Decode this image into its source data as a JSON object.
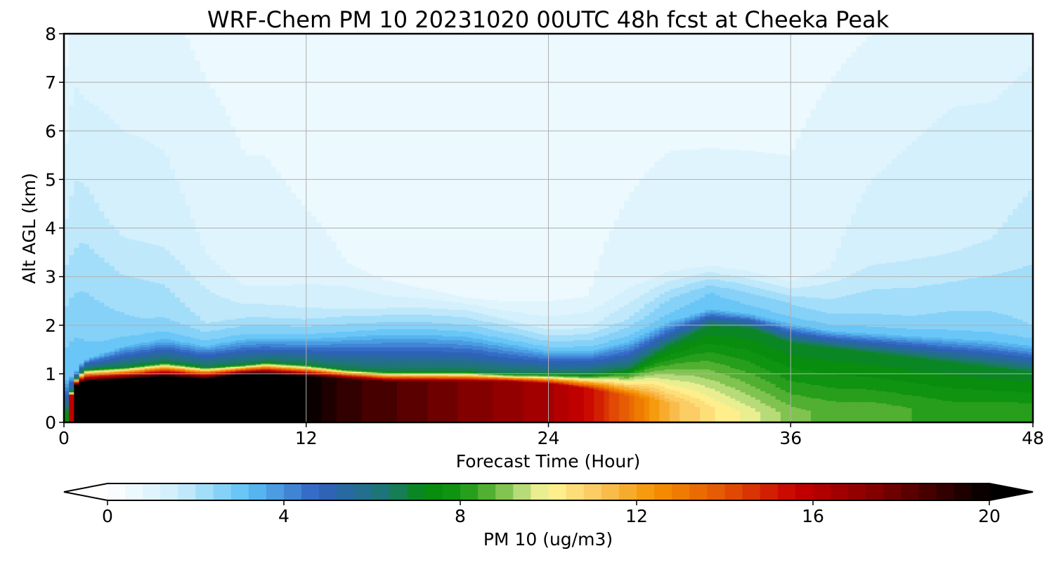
{
  "chart_data": {
    "type": "heatmap",
    "title": "WRF-Chem PM 10  20231020 00UTC 48h fcst at Cheeka Peak",
    "xlabel": "Forecast Time (Hour)",
    "ylabel": "Alt AGL (km)",
    "xlim": [
      0,
      48
    ],
    "ylim": [
      0,
      8
    ],
    "xticks": [
      0,
      12,
      24,
      36,
      48
    ],
    "yticks": [
      0,
      1,
      2,
      3,
      4,
      5,
      6,
      7,
      8
    ],
    "grid": true,
    "colorbar": {
      "label": "PM 10  (ug/m3)",
      "range": [
        0,
        20
      ],
      "step": 0.4,
      "ticks": [
        0,
        4,
        8,
        12,
        16,
        20
      ],
      "extend": "both",
      "orientation": "horizontal",
      "placement": "bottom"
    },
    "x": [
      0,
      0.5,
      1,
      3,
      5,
      7,
      9,
      10,
      12,
      14,
      16,
      18,
      20,
      22,
      24,
      26,
      28,
      30,
      32,
      34,
      36,
      38,
      40,
      42,
      44,
      46,
      48
    ],
    "y": [
      0,
      0.2,
      0.4,
      0.6,
      0.8,
      0.9,
      1.0,
      1.1,
      1.2,
      1.4,
      1.6,
      1.8,
      2.0,
      2.2,
      2.5,
      3.0,
      3.5,
      4.0,
      5.0,
      6.0,
      7.0,
      8.0
    ],
    "profiles": [
      {
        "hour": 0,
        "zb": 0.0,
        "vb": 3.0,
        "hb": 0.0,
        "ht": 0.9,
        "w": 0.15,
        "v1": 3.0,
        "z2": 4.0,
        "v2": 1.6,
        "v3": 0.5
      },
      {
        "hour": 0.5,
        "zb": 0.75,
        "vb": 20.0,
        "hb": 0.85,
        "ht": 1.0,
        "w": 0.3,
        "v1": 3.0,
        "z2": 4.0,
        "v2": 1.8,
        "v3": 1.0
      },
      {
        "hour": 1,
        "zb": 0.85,
        "vb": 20.0,
        "hb": 1.1,
        "ht": 1.3,
        "w": 0.4,
        "v1": 2.8,
        "z2": 4.5,
        "v2": 1.7,
        "v3": 0.9
      },
      {
        "hour": 3,
        "zb": 0.9,
        "vb": 20.0,
        "hb": 1.15,
        "ht": 1.6,
        "w": 0.45,
        "v1": 2.5,
        "z2": 4.0,
        "v2": 1.5,
        "v3": 0.9
      },
      {
        "hour": 5,
        "zb": 0.95,
        "vb": 20.0,
        "hb": 1.25,
        "ht": 1.75,
        "w": 0.5,
        "v1": 2.3,
        "z2": 4.0,
        "v2": 1.4,
        "v3": 0.9
      },
      {
        "hour": 7,
        "zb": 0.9,
        "vb": 20.0,
        "hb": 1.15,
        "ht": 1.6,
        "w": 0.45,
        "v1": 2.0,
        "z2": 3.5,
        "v2": 1.2,
        "v3": 0.7
      },
      {
        "hour": 9,
        "zb": 1.0,
        "vb": 20.0,
        "hb": 1.2,
        "ht": 1.75,
        "w": 0.5,
        "v1": 1.8,
        "z2": 3.0,
        "v2": 1.0,
        "v3": 0.6
      },
      {
        "hour": 10,
        "zb": 1.0,
        "vb": 20.0,
        "hb": 1.25,
        "ht": 1.75,
        "w": 0.5,
        "v1": 1.8,
        "z2": 3.0,
        "v2": 1.0,
        "v3": 0.6
      },
      {
        "hour": 12,
        "zb": 0.95,
        "vb": 20.0,
        "hb": 1.2,
        "ht": 1.75,
        "w": 0.5,
        "v1": 1.7,
        "z2": 3.2,
        "v2": 0.9,
        "v3": 0.5
      },
      {
        "hour": 14,
        "zb": 0.9,
        "vb": 19.0,
        "hb": 1.1,
        "ht": 1.8,
        "w": 0.55,
        "v1": 1.6,
        "z2": 3.3,
        "v2": 0.8,
        "v3": 0.5
      },
      {
        "hour": 16,
        "zb": 0.85,
        "vb": 18.5,
        "hb": 1.05,
        "ht": 1.85,
        "w": 0.55,
        "v1": 1.5,
        "z2": 3.0,
        "v2": 0.7,
        "v3": 0.5
      },
      {
        "hour": 18,
        "zb": 0.85,
        "vb": 18.0,
        "hb": 1.05,
        "ht": 1.85,
        "w": 0.55,
        "v1": 1.5,
        "z2": 2.8,
        "v2": 0.7,
        "v3": 0.5
      },
      {
        "hour": 20,
        "zb": 0.85,
        "vb": 17.5,
        "hb": 1.05,
        "ht": 1.8,
        "w": 0.55,
        "v1": 1.5,
        "z2": 2.6,
        "v2": 0.7,
        "v3": 0.6
      },
      {
        "hour": 22,
        "zb": 0.85,
        "vb": 17.0,
        "hb": 1.0,
        "ht": 1.65,
        "w": 0.5,
        "v1": 1.5,
        "z2": 2.5,
        "v2": 0.8,
        "v3": 0.6
      },
      {
        "hour": 24,
        "zb": 0.8,
        "vb": 16.5,
        "hb": 1.0,
        "ht": 1.5,
        "w": 0.45,
        "v1": 1.5,
        "z2": 2.5,
        "v2": 0.8,
        "v3": 0.6
      },
      {
        "hour": 26,
        "zb": 0.7,
        "vb": 15.5,
        "hb": 1.0,
        "ht": 1.5,
        "w": 0.45,
        "v1": 1.6,
        "z2": 2.6,
        "v2": 0.8,
        "v3": 0.6
      },
      {
        "hour": 28,
        "zb": 0.55,
        "vb": 13.5,
        "hb": 1.1,
        "ht": 1.7,
        "w": 0.45,
        "v1": 2.0,
        "z2": 3.0,
        "v2": 0.9,
        "v3": 0.6
      },
      {
        "hour": 30,
        "zb": 0.4,
        "vb": 11.5,
        "hb": 1.6,
        "ht": 2.1,
        "w": 0.4,
        "v1": 2.5,
        "z2": 3.2,
        "v2": 1.0,
        "v3": 0.6
      },
      {
        "hour": 32,
        "zb": 0.3,
        "vb": 10.5,
        "hb": 2.0,
        "ht": 2.35,
        "w": 0.35,
        "v1": 2.8,
        "z2": 3.3,
        "v2": 1.0,
        "v3": 0.6
      },
      {
        "hour": 34,
        "zb": 0.2,
        "vb": 9.8,
        "hb": 1.95,
        "ht": 2.25,
        "w": 0.35,
        "v1": 2.6,
        "z2": 3.2,
        "v2": 1.0,
        "v3": 0.6
      },
      {
        "hour": 36,
        "zb": 0.2,
        "vb": 9.0,
        "hb": 1.65,
        "ht": 2.05,
        "w": 0.4,
        "v1": 2.4,
        "z2": 3.0,
        "v2": 1.0,
        "v3": 0.6
      },
      {
        "hour": 38,
        "zb": 0.3,
        "vb": 8.6,
        "hb": 1.55,
        "ht": 1.9,
        "w": 0.4,
        "v1": 2.3,
        "z2": 3.2,
        "v2": 1.2,
        "v3": 0.7
      },
      {
        "hour": 40,
        "zb": 0.3,
        "vb": 8.6,
        "hb": 1.45,
        "ht": 1.85,
        "w": 0.4,
        "v1": 2.4,
        "z2": 3.5,
        "v2": 1.4,
        "v3": 0.8
      },
      {
        "hour": 42,
        "zb": 0.3,
        "vb": 8.4,
        "hb": 1.35,
        "ht": 1.8,
        "w": 0.4,
        "v1": 2.4,
        "z2": 3.5,
        "v2": 1.5,
        "v3": 0.9
      },
      {
        "hour": 44,
        "zb": 0.3,
        "vb": 8.2,
        "hb": 1.25,
        "ht": 1.75,
        "w": 0.4,
        "v1": 2.5,
        "z2": 3.5,
        "v2": 1.6,
        "v3": 1.0
      },
      {
        "hour": 46,
        "zb": 0.3,
        "vb": 8.2,
        "hb": 1.15,
        "ht": 1.7,
        "w": 0.4,
        "v1": 2.5,
        "z2": 3.8,
        "v2": 1.6,
        "v3": 1.0
      },
      {
        "hour": 48,
        "zb": 0.3,
        "vb": 8.2,
        "hb": 1.05,
        "ht": 1.6,
        "w": 0.4,
        "v1": 2.4,
        "z2": 4.2,
        "v2": 1.7,
        "v3": 1.1
      }
    ],
    "colormap": [
      {
        "v": 0.0,
        "c": "#ffffff"
      },
      {
        "v": 1.6,
        "c": "#cdeefc"
      },
      {
        "v": 3.2,
        "c": "#5bc0f6"
      },
      {
        "v": 4.8,
        "c": "#3060c0"
      },
      {
        "v": 6.4,
        "c": "#1c786e"
      },
      {
        "v": 7.2,
        "c": "#048a0c"
      },
      {
        "v": 8.0,
        "c": "#129612"
      },
      {
        "v": 8.8,
        "c": "#66b83c"
      },
      {
        "v": 9.6,
        "c": "#d2e68c"
      },
      {
        "v": 10.0,
        "c": "#fff696"
      },
      {
        "v": 11.2,
        "c": "#fac55a"
      },
      {
        "v": 12.4,
        "c": "#f59200"
      },
      {
        "v": 14.0,
        "c": "#e35405"
      },
      {
        "v": 15.6,
        "c": "#c80000"
      },
      {
        "v": 17.2,
        "c": "#8c0000"
      },
      {
        "v": 18.8,
        "c": "#3c0000"
      },
      {
        "v": 20.0,
        "c": "#000000"
      }
    ],
    "under_color": "#ffffff",
    "over_color": "#000000"
  }
}
